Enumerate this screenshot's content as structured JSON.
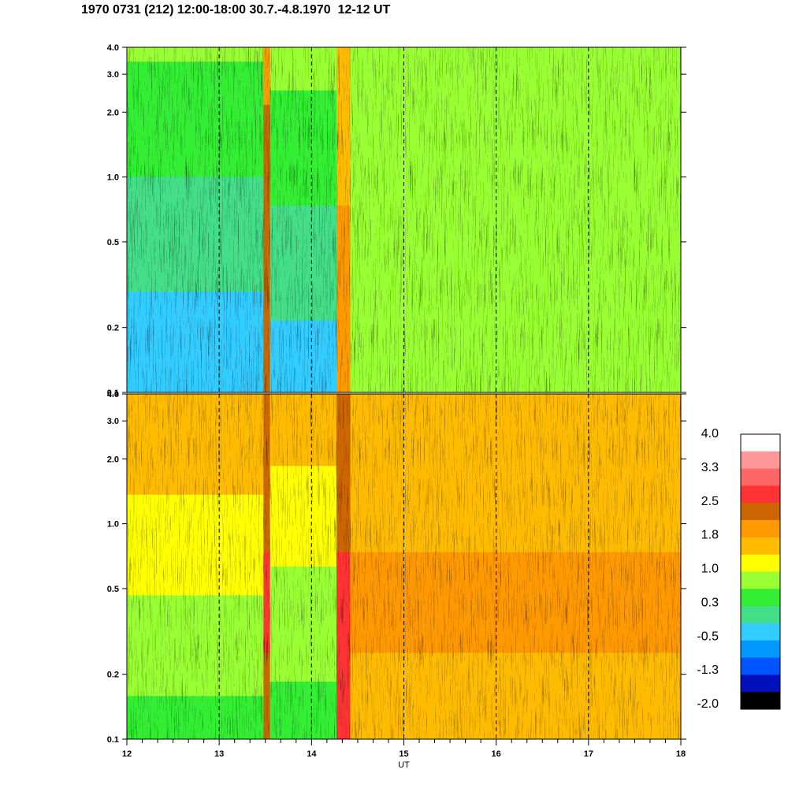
{
  "title": "1970 0731 (212) 12:00-18:00 30.7.-4.8.1970  12-12 UT",
  "chart_data": [
    {
      "type": "heatmap",
      "panel": "upper",
      "xlabel": "",
      "ylabel": "",
      "xlim": [
        12,
        18
      ],
      "y_scale": "log",
      "ylim": [
        0.1,
        4.0
      ],
      "y_ticks": [
        "0.1",
        "0.2",
        "0.5",
        "1.0",
        "2.0",
        "3.0",
        "4.0"
      ],
      "marked_hours": [
        13,
        14,
        15,
        16,
        17
      ],
      "grid": "dashed vertical lines at each hour",
      "intervals": [
        {
          "from": 12.0,
          "to": 13.0,
          "level": -0.5,
          "description": "cyan / blue low levels below 1.0, green above"
        },
        {
          "from": 13.0,
          "to": 13.48,
          "level": -0.5
        },
        {
          "from": 13.48,
          "to": 13.55,
          "level": 2.3,
          "description": "narrow red/orange burst"
        },
        {
          "from": 13.55,
          "to": 14.27,
          "level": -0.4
        },
        {
          "from": 14.27,
          "to": 14.42,
          "level": 1.8,
          "description": "orange event"
        },
        {
          "from": 14.42,
          "to": 18.0,
          "level": 0.7,
          "description": "green / yellow"
        }
      ]
    },
    {
      "type": "heatmap",
      "panel": "lower",
      "xlabel": "UT",
      "ylabel": "",
      "xlim": [
        12,
        18
      ],
      "y_scale": "log",
      "ylim": [
        0.1,
        4.0
      ],
      "y_ticks": [
        "0.1",
        "0.2",
        "0.5",
        "1.0",
        "2.0",
        "3.0",
        "4.0"
      ],
      "x_ticks": [
        "12",
        "13",
        "14",
        "15",
        "16",
        "17",
        "18"
      ],
      "marked_hours": [
        13,
        14,
        15,
        16,
        17
      ],
      "grid": "dashed vertical lines at each hour",
      "intervals": [
        {
          "from": 12.0,
          "to": 13.48,
          "level": 0.5,
          "description": "green below 1.0, orange above"
        },
        {
          "from": 13.48,
          "to": 13.55,
          "level": 2.4,
          "description": "red burst"
        },
        {
          "from": 13.55,
          "to": 14.27,
          "level": 0.4
        },
        {
          "from": 14.27,
          "to": 14.42,
          "level": 2.6,
          "description": "red event"
        },
        {
          "from": 14.42,
          "to": 18.0,
          "level": 1.7,
          "description": "orange, darker near 0.3-0.6"
        }
      ]
    }
  ],
  "colorbar": {
    "labels": [
      "4.0",
      "3.3",
      "2.5",
      "1.8",
      "1.0",
      "0.3",
      "-0.5",
      "-1.3",
      "-2.0"
    ],
    "colors": [
      "#ffffff",
      "#ff9999",
      "#ff6666",
      "#ff3333",
      "#cc6600",
      "#ff9900",
      "#ffbb00",
      "#ffff00",
      "#99ff33",
      "#33ee33",
      "#44dd88",
      "#33ccff",
      "#0099ff",
      "#0055ff",
      "#0011bb",
      "#000000"
    ]
  },
  "palette": {
    "dash_color": "#000000",
    "frame_color": "#000000"
  }
}
